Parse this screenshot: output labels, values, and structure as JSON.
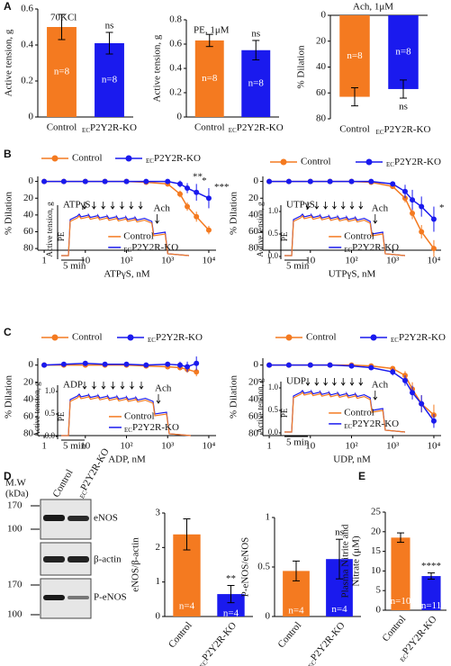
{
  "panels": [
    "A",
    "B",
    "C",
    "D",
    "E"
  ],
  "blot": {
    "mw_title": [
      "M.W",
      "(kDa)"
    ],
    "mw": [
      170,
      100,
      170,
      100
    ],
    "proteins": [
      "eNOS",
      "β-actin",
      "P-eNOS"
    ],
    "lanes": [
      "Control",
      "ECP2Y2R-KO"
    ]
  },
  "chart_data": [
    {
      "type": "bar",
      "title": "70KCl",
      "ylabel": "Active tension, g",
      "categories": [
        "Control",
        "ECP2Y2R-KO"
      ],
      "values": [
        0.5,
        0.41
      ],
      "errors": [
        0.07,
        0.06
      ],
      "colors": [
        "#f47a20",
        "#1a1aee"
      ],
      "n_labels": [
        "n=8",
        "n=8"
      ],
      "significance": [
        null,
        "ns"
      ],
      "ylim": [
        0,
        0.6
      ],
      "yticks": [
        0,
        0.2,
        0.4,
        0.6
      ]
    },
    {
      "type": "bar",
      "title": "PE, 1μM",
      "ylabel": "Active tension, g",
      "categories": [
        "Control",
        "ECP2Y2R-KO"
      ],
      "values": [
        0.63,
        0.55
      ],
      "errors": [
        0.05,
        0.08
      ],
      "colors": [
        "#f47a20",
        "#1a1aee"
      ],
      "n_labels": [
        "n=8",
        "n=8"
      ],
      "significance": [
        null,
        "ns"
      ],
      "ylim": [
        0,
        0.8
      ],
      "yticks": [
        0,
        0.2,
        0.4,
        0.6,
        0.8
      ]
    },
    {
      "type": "bar",
      "title": "Ach, 1μM",
      "ylabel": "% Dilation",
      "y_inverted": true,
      "categories": [
        "Control",
        "ECP2Y2R-KO"
      ],
      "values": [
        63,
        57
      ],
      "errors": [
        7,
        7
      ],
      "colors": [
        "#f47a20",
        "#1a1aee"
      ],
      "n_labels": [
        "n=8",
        "n=8"
      ],
      "significance": [
        null,
        "ns"
      ],
      "ylim": [
        0,
        80
      ],
      "yticks": [
        0,
        20,
        40,
        60,
        80
      ]
    },
    {
      "type": "line",
      "xscale": "log",
      "ylabel": "% Dilation",
      "xlabel": "ATPγS, nM",
      "y_inverted": true,
      "x": [
        1,
        3,
        10,
        30,
        100,
        300,
        1000,
        2000,
        3000,
        5000,
        10000
      ],
      "series": [
        {
          "name": "Control",
          "color": "#f47a20",
          "values": [
            0,
            0,
            0,
            0,
            0,
            1,
            3,
            15,
            30,
            42,
            58
          ],
          "errors": [
            1,
            1,
            1,
            1,
            1,
            2,
            3,
            4,
            5,
            6,
            5
          ]
        },
        {
          "name": "ECP2Y2R-KO",
          "color": "#1a1aee",
          "values": [
            0,
            0,
            0,
            0,
            0,
            0,
            0,
            3,
            8,
            13,
            20
          ],
          "errors": [
            2,
            1,
            1,
            1,
            1,
            1,
            2,
            4,
            6,
            10,
            12
          ]
        }
      ],
      "annotations": [
        {
          "text": "**",
          "x": 3000
        },
        {
          "text": "*",
          "x": 5000
        },
        {
          "text": "***",
          "x": 10000
        }
      ],
      "xlim": [
        0.7,
        15000
      ],
      "xticks": [
        1,
        10,
        {
          "value": 100,
          "label": "10²"
        },
        {
          "value": 1000,
          "label": "10³"
        },
        {
          "value": 10000,
          "label": "10⁴"
        }
      ],
      "ylim": [
        -6,
        82
      ],
      "yticks": [
        0,
        20,
        40,
        60,
        80
      ],
      "inset": {
        "drug": "ATPγS",
        "ach": "Ach",
        "pe": "PE",
        "scale_bar": "5 min",
        "ylabel": "Active tension, g"
      }
    },
    {
      "type": "line",
      "xscale": "log",
      "ylabel": "% Dilation",
      "xlabel": "UTPγS, nM",
      "y_inverted": true,
      "x": [
        1,
        3,
        10,
        30,
        100,
        300,
        1000,
        2000,
        3000,
        5000,
        10000
      ],
      "series": [
        {
          "name": "Control",
          "color": "#f47a20",
          "values": [
            0,
            0,
            0,
            0,
            0,
            1,
            6,
            20,
            38,
            60,
            80
          ],
          "errors": [
            1,
            1,
            1,
            1,
            1,
            2,
            3,
            5,
            7,
            8,
            10
          ]
        },
        {
          "name": "ECP2Y2R-KO",
          "color": "#1a1aee",
          "values": [
            0,
            0,
            0,
            0,
            0,
            0,
            3,
            12,
            22,
            30,
            45
          ],
          "errors": [
            1,
            1,
            1,
            1,
            1,
            2,
            3,
            8,
            12,
            12,
            15
          ]
        }
      ],
      "annotations": [
        {
          "text": "*",
          "x": 10000
        }
      ],
      "xlim": [
        0.7,
        15000
      ],
      "xticks": [
        1,
        10,
        {
          "value": 100,
          "label": "10²"
        },
        {
          "value": 1000,
          "label": "10³"
        },
        {
          "value": 10000,
          "label": "10⁴"
        }
      ],
      "ylim": [
        -6,
        82
      ],
      "yticks": [
        0,
        20,
        40,
        60,
        80
      ],
      "inset": {
        "drug": "UTPγS",
        "ach": "Ach",
        "pe": "PE",
        "scale_bar": "5 min",
        "ylabel": "Active tension, g",
        "ylim": [
          0,
          1.2
        ],
        "yticks": [
          {
            "value": 0,
            "label": "0.0"
          },
          {
            "value": 0.5,
            "label": "0.5"
          },
          {
            "value": 1,
            "label": "1.0"
          }
        ]
      }
    },
    {
      "type": "line",
      "xscale": "log",
      "ylabel": "% Dilation",
      "xlabel": "ADP, nM",
      "y_inverted": true,
      "x": [
        1,
        3,
        10,
        30,
        100,
        300,
        1000,
        2000,
        3000,
        5000
      ],
      "series": [
        {
          "name": "Control",
          "color": "#f47a20",
          "values": [
            0,
            0,
            0,
            0,
            0,
            1,
            2,
            3,
            5,
            8
          ],
          "errors": [
            1,
            1,
            1,
            1,
            2,
            2,
            3,
            3,
            4,
            5
          ]
        },
        {
          "name": "ECP2Y2R-KO",
          "color": "#1a1aee",
          "values": [
            0,
            -1,
            -2,
            -1,
            -1,
            0,
            -1,
            0,
            2,
            -2
          ],
          "errors": [
            1,
            1,
            2,
            2,
            2,
            2,
            3,
            4,
            6,
            8
          ]
        }
      ],
      "annotations": [],
      "xlim": [
        0.7,
        15000
      ],
      "xticks": [
        1,
        10,
        {
          "value": 100,
          "label": "10²"
        },
        {
          "value": 1000,
          "label": "10³"
        },
        {
          "value": 10000,
          "label": "10⁴"
        }
      ],
      "ylim": [
        -8,
        82
      ],
      "yticks": [
        0,
        20,
        40,
        60,
        80
      ],
      "inset": {
        "drug": "ADP",
        "ach": "Ach",
        "pe": "PE",
        "scale_bar": "5 min",
        "ylabel": "Active tension, g",
        "ylim": [
          0,
          1.2
        ],
        "yticks": [
          {
            "value": 0,
            "label": "0.0"
          },
          {
            "value": 0.5,
            "label": "0.5"
          },
          {
            "value": 1,
            "label": "1.0"
          }
        ]
      }
    },
    {
      "type": "line",
      "xscale": "log",
      "ylabel": "% Dilation",
      "xlabel": "UDP, nM",
      "y_inverted": true,
      "x": [
        1,
        3,
        10,
        30,
        100,
        300,
        1000,
        2000,
        3000,
        5000,
        10000
      ],
      "series": [
        {
          "name": "Control",
          "color": "#f47a20",
          "values": [
            0,
            0,
            0,
            0,
            0,
            1,
            4,
            12,
            28,
            45,
            58
          ],
          "errors": [
            1,
            1,
            1,
            1,
            1,
            2,
            3,
            5,
            8,
            10,
            12
          ]
        },
        {
          "name": "ECP2Y2R-KO",
          "color": "#1a1aee",
          "values": [
            0,
            0,
            0,
            0,
            1,
            3,
            8,
            18,
            32,
            45,
            65
          ],
          "errors": [
            1,
            1,
            1,
            1,
            2,
            2,
            4,
            6,
            8,
            10,
            8
          ]
        }
      ],
      "annotations": [],
      "xlim": [
        0.7,
        15000
      ],
      "xticks": [
        1,
        10,
        {
          "value": 100,
          "label": "10²"
        },
        {
          "value": 1000,
          "label": "10³"
        },
        {
          "value": 10000,
          "label": "10⁴"
        }
      ],
      "ylim": [
        -8,
        82
      ],
      "yticks": [
        0,
        20,
        40,
        60,
        80
      ],
      "inset": {
        "drug": "UDP",
        "ach": "Ach",
        "pe": "PE",
        "scale_bar": "5 min",
        "ylabel": "Active tension, g",
        "ylim": [
          0,
          1.2
        ],
        "yticks": [
          {
            "value": 0,
            "label": "0.0"
          },
          {
            "value": 0.5,
            "label": "0.5"
          },
          {
            "value": 1,
            "label": "1.0"
          }
        ]
      }
    },
    {
      "type": "bar",
      "ylabel": "eNOS/β-actin",
      "categories": [
        "Control",
        "ECP2Y2R-KO"
      ],
      "values": [
        2.38,
        0.65
      ],
      "errors": [
        0.45,
        0.25
      ],
      "colors": [
        "#f47a20",
        "#1a1aee"
      ],
      "n_labels": [
        "n=4",
        "n=4"
      ],
      "significance": [
        null,
        "**"
      ],
      "ylim": [
        0,
        3
      ],
      "yticks": [
        0,
        1,
        2,
        3
      ]
    },
    {
      "type": "bar",
      "ylabel": "P-eNOS/eNOS",
      "categories": [
        "Control",
        "ECP2Y2R-KO"
      ],
      "values": [
        0.46,
        0.58
      ],
      "errors": [
        0.1,
        0.2
      ],
      "colors": [
        "#f47a20",
        "#1a1aee"
      ],
      "n_labels": [
        "n=4",
        "n=4"
      ],
      "significance": [
        null,
        "ns"
      ],
      "ylim": [
        0,
        1
      ],
      "yticks": [
        0,
        0.5,
        1
      ]
    },
    {
      "type": "bar",
      "ylabel": [
        "Plasma Nitrite and",
        "Nitrate (μM)"
      ],
      "categories": [
        "Control",
        "ECP2Y2R-KO"
      ],
      "values": [
        18.5,
        8.7
      ],
      "errors": [
        1.2,
        0.8
      ],
      "colors": [
        "#f47a20",
        "#1a1aee"
      ],
      "n_labels": [
        "n=10",
        "n=11"
      ],
      "significance": [
        null,
        "****"
      ],
      "ylim": [
        0,
        25
      ],
      "yticks": [
        0,
        5,
        10,
        15,
        20,
        25
      ]
    }
  ]
}
